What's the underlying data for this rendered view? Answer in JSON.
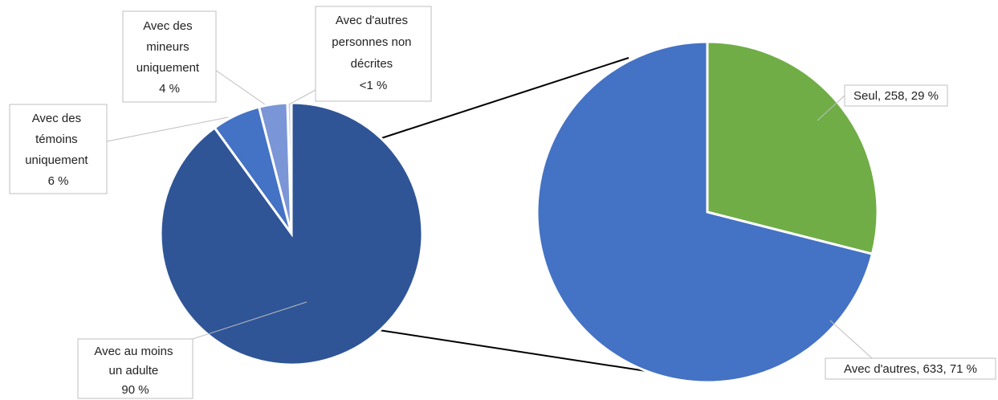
{
  "chart_data": [
    {
      "type": "pie",
      "categories": [
        "Avec au moins un adulte",
        "Avec des témoins uniquement",
        "Avec des mineurs uniquement",
        "Avec d'autres personnes non décrites"
      ],
      "values": [
        90,
        6,
        3.5,
        0.5
      ],
      "labels": [
        [
          "Avec au moins",
          "un adulte",
          "90 %"
        ],
        [
          "Avec des",
          "témoins",
          "uniquement",
          "6 %"
        ],
        [
          "Avec des",
          "mineurs",
          "uniquement",
          "4 %"
        ],
        [
          "Avec d'autres",
          "personnes non",
          "décrites",
          "<1 %"
        ]
      ],
      "colors": [
        "#2f5597",
        "#4472c4",
        "#7b96d6",
        "#c9d5ee"
      ]
    },
    {
      "type": "pie",
      "categories": [
        "Seul",
        "Avec d'autres"
      ],
      "values": [
        258,
        633
      ],
      "percent": [
        29,
        71
      ],
      "labels": [
        "Seul, 258, 29 %",
        "Avec d'autres, 633, 71 %"
      ],
      "colors": [
        "#70ad47",
        "#4472c4"
      ]
    }
  ]
}
